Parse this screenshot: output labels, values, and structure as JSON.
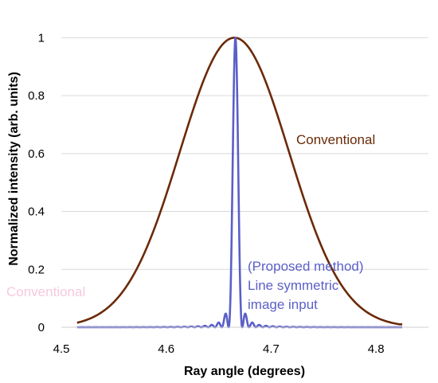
{
  "chart_data": {
    "type": "line",
    "xlabel": "Ray angle (degrees)",
    "ylabel": "Normalized intensity (arb. units)",
    "xlim": [
      4.5,
      4.85
    ],
    "ylim": [
      0,
      1.1
    ],
    "x_ticks": [
      4.5,
      4.6,
      4.7,
      4.8
    ],
    "x_tick_labels": [
      "4.5",
      "4.6",
      "4.7",
      "4.8"
    ],
    "y_ticks": [
      0,
      0.2,
      0.4,
      0.6,
      0.8,
      1
    ],
    "y_tick_labels": [
      "0",
      "0.2",
      "0.4",
      "0.6",
      "0.8",
      "1"
    ],
    "grid": "horizontal",
    "series": [
      {
        "name": "Conventional",
        "color": "#6b2a08",
        "x": [
          4.515,
          4.525,
          4.535,
          4.545,
          4.555,
          4.565,
          4.575,
          4.585,
          4.595,
          4.605,
          4.615,
          4.625,
          4.635,
          4.645,
          4.655,
          4.665,
          4.675,
          4.685,
          4.695,
          4.705,
          4.715,
          4.725,
          4.735,
          4.745,
          4.755,
          4.765,
          4.775,
          4.785,
          4.795,
          4.805,
          4.815,
          4.825
        ],
        "y": [
          0.01,
          0.022,
          0.045,
          0.081,
          0.133,
          0.203,
          0.29,
          0.39,
          0.5,
          0.613,
          0.72,
          0.815,
          0.893,
          0.951,
          0.988,
          1.0,
          0.988,
          0.951,
          0.893,
          0.815,
          0.72,
          0.613,
          0.5,
          0.39,
          0.29,
          0.203,
          0.133,
          0.081,
          0.045,
          0.022,
          0.01,
          0.01
        ]
      },
      {
        "name": "Line symmetric image input",
        "color": "#5b5fc7",
        "x": [
          4.515,
          4.58,
          4.6,
          4.61,
          4.615,
          4.62,
          4.625,
          4.63,
          4.635,
          4.64,
          4.645,
          4.648,
          4.65,
          4.652,
          4.655,
          4.658,
          4.66,
          4.662,
          4.664,
          4.666,
          4.668,
          4.67,
          4.672,
          4.675,
          4.678,
          4.68,
          4.682,
          4.685,
          4.688,
          4.69,
          4.695,
          4.7,
          4.705,
          4.71,
          4.715,
          4.72,
          4.73,
          4.75,
          4.825
        ],
        "y": [
          0.0,
          0.0,
          0.002,
          0.004,
          0.0,
          0.006,
          0.0,
          0.01,
          0.0,
          0.016,
          0.0,
          0.012,
          0.035,
          0.045,
          0.0,
          0.0,
          0.1,
          0.45,
          0.9,
          1.0,
          0.9,
          0.45,
          0.1,
          0.0,
          0.0,
          0.035,
          0.045,
          0.012,
          0.0,
          0.016,
          0.0,
          0.01,
          0.0,
          0.006,
          0.0,
          0.004,
          0.002,
          0.0,
          0.0
        ]
      }
    ],
    "annotations": {
      "conventional": "Conventional",
      "proposed_line1": "(Proposed method)",
      "proposed_line2": "Line symmetric",
      "proposed_line3": "image input",
      "faded_label": "Conventional"
    }
  }
}
